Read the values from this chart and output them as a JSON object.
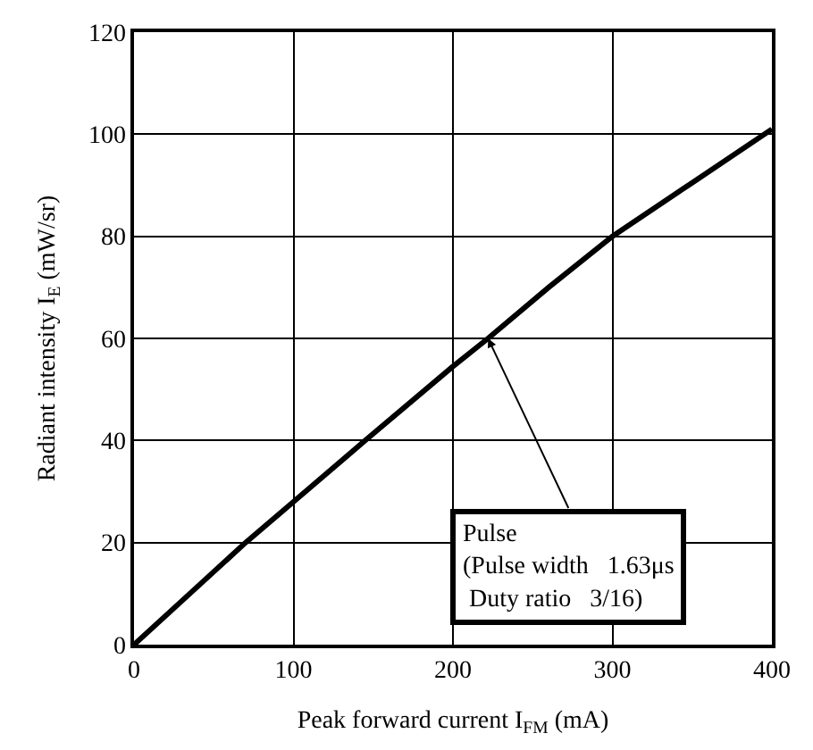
{
  "chart_data": {
    "type": "line",
    "xlabel": "Peak forward current I$_{FM}$ (mA)",
    "ylabel": "Radiant intensity I$_{E}$ (mW/sr)",
    "x": [
      0,
      35,
      70,
      100,
      145,
      200,
      222,
      260,
      300,
      350,
      400
    ],
    "series": [
      {
        "color": "#000000",
        "values": [
          0,
          10,
          20,
          28,
          40,
          54.5,
          60,
          70,
          80,
          90.5,
          101
        ]
      }
    ],
    "xlim": [
      0,
      400
    ],
    "xticks": [
      0,
      100,
      200,
      300,
      400
    ],
    "ylim": [
      0,
      120
    ],
    "yticks": [
      0,
      20,
      40,
      60,
      80,
      100,
      120
    ],
    "grid": true,
    "marker": "none",
    "line_style": "solid",
    "annotations": [
      {
        "text": "Pulse\n(Pulse width   1.63μs\n Duty ratio   3/16)",
        "x": 222,
        "y": 60
      }
    ]
  }
}
